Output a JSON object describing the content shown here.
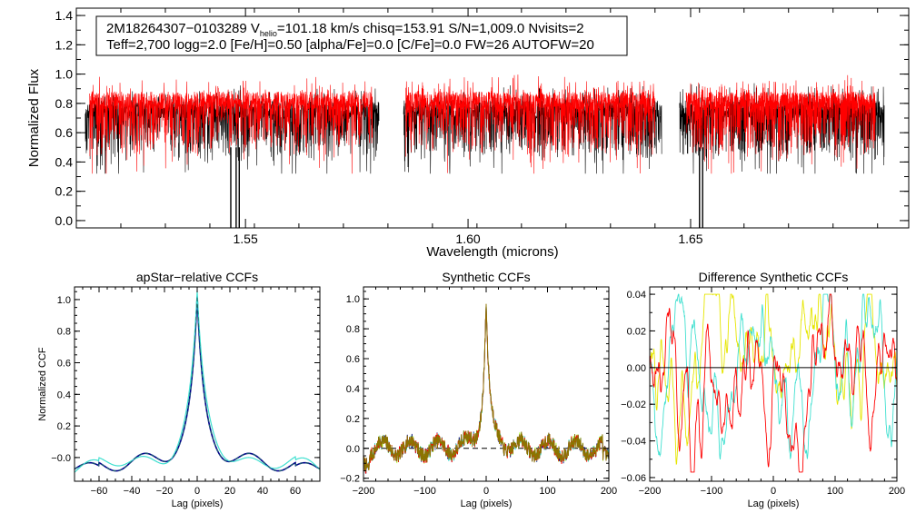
{
  "chart_data": [
    {
      "type": "line",
      "name": "spectrum",
      "title": "",
      "xlabel": "Wavelength (microns)",
      "ylabel": "Normalized Flux",
      "xlim": [
        1.512,
        1.699
      ],
      "ylim": [
        -0.05,
        1.45
      ],
      "xticks": [
        1.55,
        1.6,
        1.65
      ],
      "xtick_labels": [
        "1.55",
        "1.60",
        "1.65"
      ],
      "yticks": [
        0.0,
        0.2,
        0.4,
        0.6,
        0.8,
        1.0,
        1.2,
        1.4
      ],
      "ytick_labels": [
        "0.0",
        "0.2",
        "0.4",
        "0.6",
        "0.8",
        "1.0",
        "1.2",
        "1.4"
      ],
      "chips": [
        [
          1.514,
          1.58
        ],
        [
          1.5855,
          1.6435
        ],
        [
          1.6475,
          1.6935
        ]
      ],
      "model_chips": [
        [
          1.515,
          1.5785
        ],
        [
          1.586,
          1.642
        ],
        [
          1.649,
          1.6915
        ]
      ],
      "series": [
        {
          "name": "observed",
          "color": "#000000",
          "level": 0.76,
          "depth_scale": 0.3
        },
        {
          "name": "model",
          "color": "#ff0000",
          "level": 0.82,
          "depth_scale": 0.32
        }
      ],
      "bad_pixel_lines": [
        1.5467,
        1.5479,
        1.5486,
        1.652,
        1.6527
      ],
      "info": {
        "line1_pre": "2M18264307−0103289  V",
        "line1_sub": "helio",
        "line1_post": "=101.18 km/s  chisq=153.91  S/N=1,009.0  Nvisits=2",
        "line2": "Teff=2,700 logg=2.0 [Fe/H]=0.50 [alpha/Fe]=0.0 [C/Fe]=0.0 FW=26 AUTOFW=20"
      }
    },
    {
      "type": "line",
      "name": "apstar-ccf",
      "title": "apStar−relative CCFs",
      "xlabel": "Lag (pixels)",
      "ylabel": "Normalized CCF",
      "xlim": [
        -75,
        75
      ],
      "ylim": [
        -0.15,
        1.08
      ],
      "xticks": [
        -60,
        -40,
        -20,
        0,
        20,
        40,
        60
      ],
      "xtick_labels": [
        "−60",
        "−40",
        "−20",
        "0",
        "20",
        "40",
        "60"
      ],
      "yticks": [
        0.0,
        0.2,
        0.4,
        0.6,
        0.8,
        1.0
      ],
      "ytick_labels": [
        "−0.0",
        "0.2",
        "0.4",
        "0.6",
        "0.8",
        "1.0"
      ],
      "series": [
        {
          "name": "visit 1",
          "color": "#00008b",
          "width": 1.6
        },
        {
          "name": "visit 2",
          "color": "#40e0d0",
          "width": 1.2
        },
        {
          "name": "combined",
          "color": "#1f6b6b",
          "width": 1.0,
          "dashed": true
        }
      ],
      "peak": {
        "x": 0,
        "y": 1.0
      }
    },
    {
      "type": "line",
      "name": "synthetic-ccf",
      "title": "Synthetic CCFs",
      "xlabel": "Lag (pixels)",
      "ylabel": "",
      "xlim": [
        -200,
        200
      ],
      "ylim": [
        -0.22,
        1.08
      ],
      "xticks": [
        -200,
        -100,
        0,
        100,
        200
      ],
      "xtick_labels": [
        "−200",
        "−100",
        "0",
        "100",
        "200"
      ],
      "yticks": [
        -0.2,
        0.0,
        0.2,
        0.4,
        0.6,
        0.8,
        1.0
      ],
      "ytick_labels": [
        "−0.2",
        "0.0",
        "0.2",
        "0.4",
        "0.6",
        "0.8",
        "1.0"
      ],
      "series": [
        {
          "name": "visit 1",
          "color": "#adff2f"
        },
        {
          "name": "visit 2",
          "color": "#00008b"
        },
        {
          "name": "visit 3",
          "color": "#40e0d0"
        },
        {
          "name": "visit 4",
          "color": "#ff0000"
        },
        {
          "name": "visit 5",
          "color": "#8b7500"
        }
      ],
      "zero_line": {
        "y": 0.0,
        "dashed": true
      },
      "peak": {
        "x": 0,
        "y": 1.0
      }
    },
    {
      "type": "line",
      "name": "difference-ccf",
      "title": "Difference Synthetic CCFs",
      "xlabel": "Lag (pixels)",
      "ylabel": "",
      "xlim": [
        -200,
        200
      ],
      "ylim": [
        -0.062,
        0.044
      ],
      "xticks": [
        -200,
        -100,
        0,
        100,
        200
      ],
      "xtick_labels": [
        "−200",
        "−100",
        "0",
        "100",
        "200"
      ],
      "yticks": [
        -0.06,
        -0.04,
        -0.02,
        0.0,
        0.02,
        0.04
      ],
      "ytick_labels": [
        "−0.06",
        "−0.04",
        "−0.02",
        "0.00",
        "0.02",
        "0.04"
      ],
      "series": [
        {
          "name": "visit 1",
          "color": "#e6e600"
        },
        {
          "name": "visit 2",
          "color": "#40e0d0"
        },
        {
          "name": "visit 3",
          "color": "#ff0000"
        }
      ],
      "zero_line": {
        "y": 0.0,
        "dashed": false
      },
      "range_hint": {
        "min": -0.057,
        "max": 0.04
      }
    }
  ]
}
